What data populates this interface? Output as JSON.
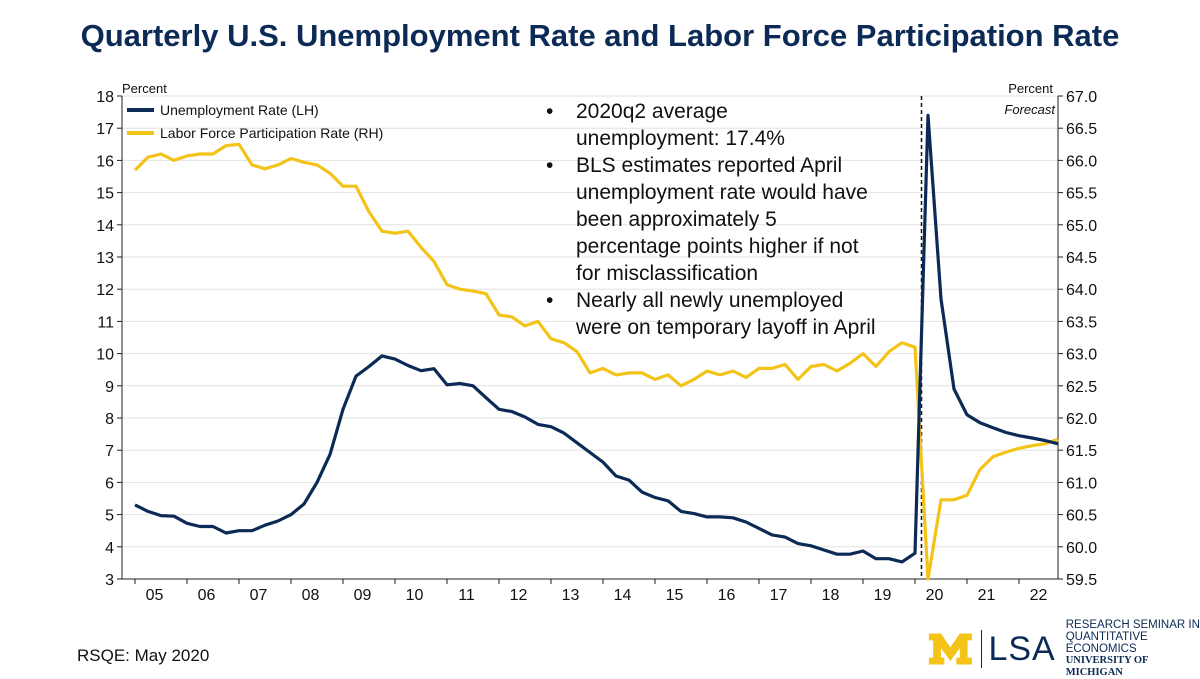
{
  "title": "Quarterly U.S. Unemployment Rate and Labor Force Participation Rate",
  "footer": "RSQE: May 2020",
  "logo": {
    "block_letter": "M",
    "unit": "LSA",
    "lines": [
      "RESEARCH SEMINAR IN",
      "QUANTITATIVE ECONOMICS",
      "UNIVERSITY OF MICHIGAN"
    ],
    "colors": {
      "maize": "#f3c318",
      "blue": "#0b2a55"
    }
  },
  "chart_data": {
    "type": "line",
    "left_axis_label": "Percent",
    "right_axis_label": "Percent",
    "forecast_label": "Forecast",
    "left_ylim": [
      3,
      18
    ],
    "left_ticks": [
      3,
      4,
      5,
      6,
      7,
      8,
      9,
      10,
      11,
      12,
      13,
      14,
      15,
      16,
      17,
      18
    ],
    "right_ylim": [
      59.5,
      67.0
    ],
    "right_ticks": [
      "59.5",
      "60.0",
      "60.5",
      "61.0",
      "61.5",
      "62.0",
      "62.5",
      "63.0",
      "63.5",
      "64.0",
      "64.5",
      "65.0",
      "65.5",
      "66.0",
      "66.5",
      "67.0"
    ],
    "x_range": [
      2004.75,
      2022.75
    ],
    "x_ticks": [
      {
        "label": "05",
        "x": 2005.375
      },
      {
        "label": "06",
        "x": 2006.375
      },
      {
        "label": "07",
        "x": 2007.375
      },
      {
        "label": "08",
        "x": 2008.375
      },
      {
        "label": "09",
        "x": 2009.375
      },
      {
        "label": "10",
        "x": 2010.375
      },
      {
        "label": "11",
        "x": 2011.375
      },
      {
        "label": "12",
        "x": 2012.375
      },
      {
        "label": "13",
        "x": 2013.375
      },
      {
        "label": "14",
        "x": 2014.375
      },
      {
        "label": "15",
        "x": 2015.375
      },
      {
        "label": "16",
        "x": 2016.375
      },
      {
        "label": "17",
        "x": 2017.375
      },
      {
        "label": "18",
        "x": 2018.375
      },
      {
        "label": "19",
        "x": 2019.375
      },
      {
        "label": "20",
        "x": 2020.375
      },
      {
        "label": "21",
        "x": 2021.375
      },
      {
        "label": "22",
        "x": 2022.375
      }
    ],
    "forecast_start": 2020.125,
    "grid": true,
    "legend_position": "top-left",
    "series": [
      {
        "name": "Unemployment Rate (LH)",
        "axis": "left",
        "color": "#0b2a55",
        "x": [
          2005.0,
          2005.25,
          2005.5,
          2005.75,
          2006.0,
          2006.25,
          2006.5,
          2006.75,
          2007.0,
          2007.25,
          2007.5,
          2007.75,
          2008.0,
          2008.25,
          2008.5,
          2008.75,
          2009.0,
          2009.25,
          2009.5,
          2009.75,
          2010.0,
          2010.25,
          2010.5,
          2010.75,
          2011.0,
          2011.25,
          2011.5,
          2011.75,
          2012.0,
          2012.25,
          2012.5,
          2012.75,
          2013.0,
          2013.25,
          2013.5,
          2013.75,
          2014.0,
          2014.25,
          2014.5,
          2014.75,
          2015.0,
          2015.25,
          2015.5,
          2015.75,
          2016.0,
          2016.25,
          2016.5,
          2016.75,
          2017.0,
          2017.25,
          2017.5,
          2017.75,
          2018.0,
          2018.25,
          2018.5,
          2018.75,
          2019.0,
          2019.25,
          2019.5,
          2019.75,
          2020.0,
          2020.25,
          2020.5,
          2020.75,
          2021.0,
          2021.25,
          2021.5,
          2021.75,
          2022.0,
          2022.25,
          2022.5,
          2022.75
        ],
        "values": [
          5.3,
          5.1,
          4.97,
          4.95,
          4.73,
          4.63,
          4.63,
          4.43,
          4.5,
          4.5,
          4.67,
          4.8,
          5.0,
          5.33,
          6.0,
          6.87,
          8.27,
          9.3,
          9.6,
          9.93,
          9.83,
          9.63,
          9.47,
          9.53,
          9.03,
          9.07,
          9.0,
          8.63,
          8.27,
          8.2,
          8.03,
          7.8,
          7.73,
          7.53,
          7.23,
          6.93,
          6.63,
          6.2,
          6.07,
          5.7,
          5.53,
          5.43,
          5.1,
          5.03,
          4.93,
          4.93,
          4.9,
          4.77,
          4.57,
          4.37,
          4.3,
          4.1,
          4.03,
          3.9,
          3.77,
          3.77,
          3.87,
          3.63,
          3.63,
          3.53,
          3.8,
          17.4,
          11.7,
          8.9,
          8.1,
          7.85,
          7.7,
          7.55,
          7.45,
          7.38,
          7.3,
          7.2
        ]
      },
      {
        "name": "Labor Force Participation Rate (RH)",
        "axis": "right",
        "color": "#f3c318",
        "x": [
          2005.0,
          2005.25,
          2005.5,
          2005.75,
          2006.0,
          2006.25,
          2006.5,
          2006.75,
          2007.0,
          2007.25,
          2007.5,
          2007.75,
          2008.0,
          2008.25,
          2008.5,
          2008.75,
          2009.0,
          2009.25,
          2009.5,
          2009.75,
          2010.0,
          2010.25,
          2010.5,
          2010.75,
          2011.0,
          2011.25,
          2011.5,
          2011.75,
          2012.0,
          2012.25,
          2012.5,
          2012.75,
          2013.0,
          2013.25,
          2013.5,
          2013.75,
          2014.0,
          2014.25,
          2014.5,
          2014.75,
          2015.0,
          2015.25,
          2015.5,
          2015.75,
          2016.0,
          2016.25,
          2016.5,
          2016.75,
          2017.0,
          2017.25,
          2017.5,
          2017.75,
          2018.0,
          2018.25,
          2018.5,
          2018.75,
          2019.0,
          2019.25,
          2019.5,
          2019.75,
          2020.0,
          2020.25,
          2020.5,
          2020.75,
          2021.0,
          2021.25,
          2021.5,
          2021.75,
          2022.0,
          2022.25,
          2022.5,
          2022.75
        ],
        "values": [
          65.85,
          66.05,
          66.1,
          66.0,
          66.07,
          66.1,
          66.1,
          66.23,
          66.25,
          65.93,
          65.87,
          65.93,
          66.03,
          65.97,
          65.93,
          65.8,
          65.6,
          65.6,
          65.2,
          64.9,
          64.87,
          64.9,
          64.65,
          64.43,
          64.07,
          64.0,
          63.97,
          63.93,
          63.6,
          63.57,
          63.43,
          63.5,
          63.23,
          63.17,
          63.03,
          62.7,
          62.77,
          62.67,
          62.7,
          62.7,
          62.6,
          62.67,
          62.5,
          62.6,
          62.73,
          62.67,
          62.73,
          62.63,
          62.77,
          62.77,
          62.83,
          62.6,
          62.8,
          62.83,
          62.73,
          62.85,
          63.0,
          62.8,
          63.03,
          63.17,
          63.1,
          59.5,
          60.73,
          60.73,
          60.8,
          61.2,
          61.4,
          61.47,
          61.53,
          61.57,
          61.6,
          61.67
        ]
      }
    ],
    "annotations": [
      {
        "bullet": "•",
        "lines": [
          "2020q2 average",
          "unemployment: 17.4%"
        ]
      },
      {
        "bullet": "•",
        "lines": [
          "BLS estimates reported April",
          "unemployment rate would have",
          "been approximately 5",
          "percentage points higher if not",
          "for misclassification"
        ]
      },
      {
        "bullet": "•",
        "lines": [
          "Nearly all newly unemployed",
          "were on temporary layoff in April"
        ]
      }
    ]
  }
}
